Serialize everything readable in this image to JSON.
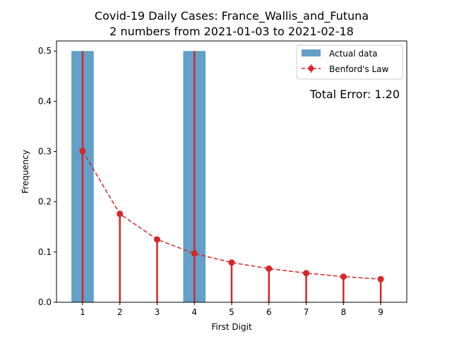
{
  "chart_data": {
    "type": "bar",
    "title_line1": "Covid-19 Daily Cases: France_Wallis_and_Futuna",
    "title_line2": "2 numbers from 2021-01-03 to 2021-02-18",
    "xlabel": "First Digit",
    "ylabel": "Frequency",
    "categories": [
      "1",
      "2",
      "3",
      "4",
      "5",
      "6",
      "7",
      "8",
      "9"
    ],
    "x": [
      1,
      2,
      3,
      4,
      5,
      6,
      7,
      8,
      9
    ],
    "xlim": [
      0.3,
      9.7
    ],
    "ylim": [
      0,
      0.52
    ],
    "yticks": [
      0.0,
      0.1,
      0.2,
      0.3,
      0.4,
      0.5
    ],
    "ytick_labels": [
      "0.0",
      "0.1",
      "0.2",
      "0.3",
      "0.4",
      "0.5"
    ],
    "series": [
      {
        "name": "Actual data",
        "type": "bar",
        "color": "#1f77b4",
        "values": [
          0.5,
          0,
          0,
          0.5,
          0,
          0,
          0,
          0,
          0
        ]
      },
      {
        "name": "Benford's Law",
        "type": "line",
        "color": "#d62728",
        "values": [
          0.301,
          0.176,
          0.125,
          0.097,
          0.079,
          0.067,
          0.058,
          0.051,
          0.046
        ]
      }
    ],
    "annotation": "Total Error: 1.20",
    "annotation_color": "#d62728",
    "legend_position": "top-right",
    "grid": false
  }
}
